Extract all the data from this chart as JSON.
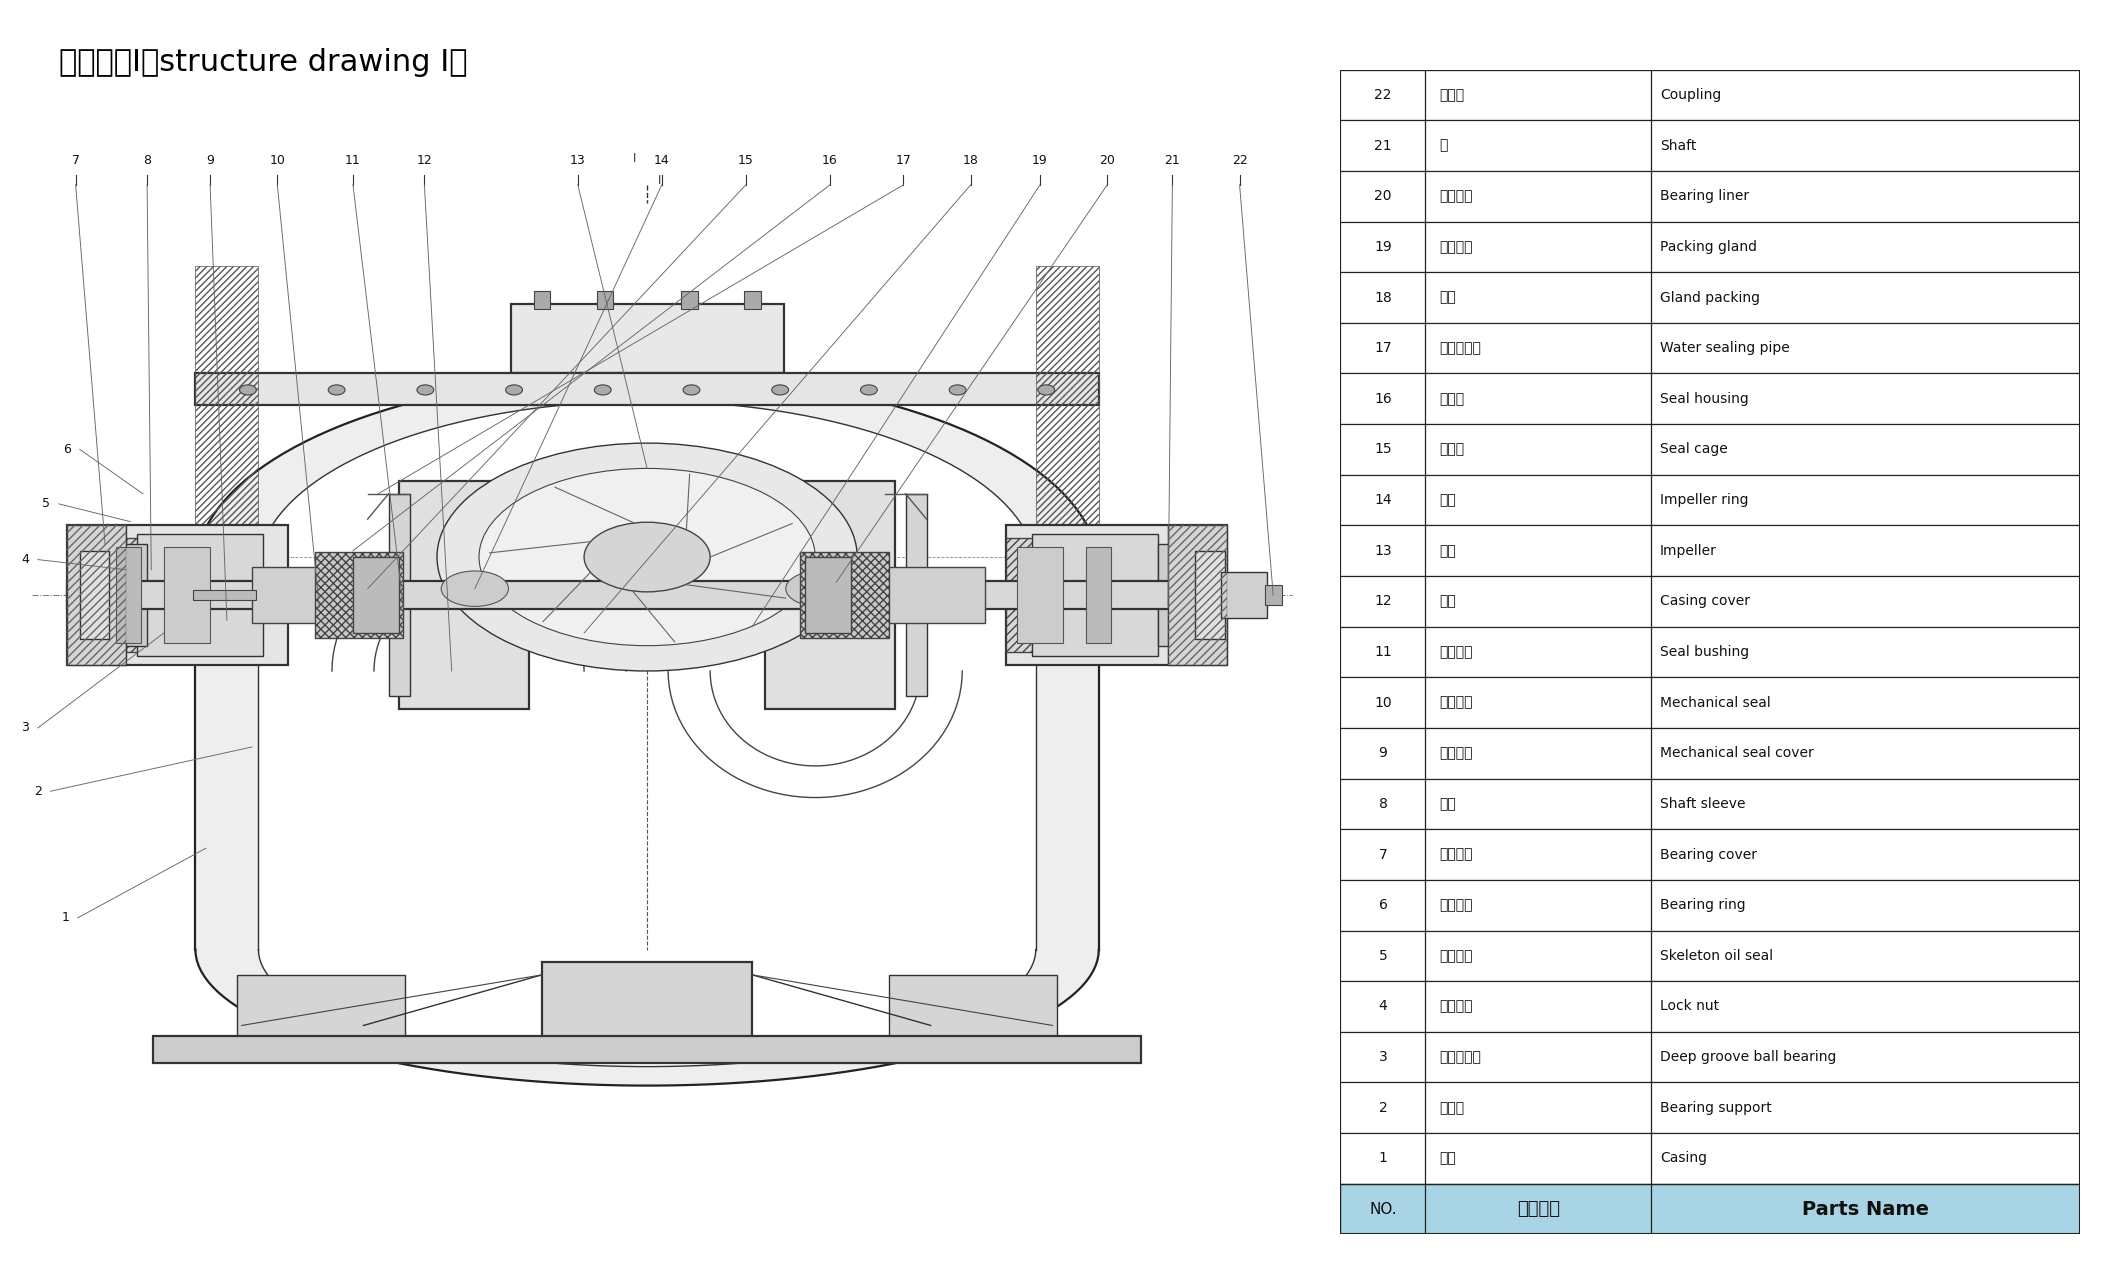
{
  "title": "结构形式I（structure drawing I）",
  "title_fontsize": 22,
  "table_data": [
    [
      "22",
      "联轴器",
      "Coupling"
    ],
    [
      "21",
      "轴",
      "Shaft"
    ],
    [
      "20",
      "轴承衬圈",
      "Bearing liner"
    ],
    [
      "19",
      "填料压盖",
      "Packing gland"
    ],
    [
      "18",
      "填料",
      "Gland packing"
    ],
    [
      "17",
      "水封管部件",
      "Water sealing pipe"
    ],
    [
      "16",
      "密封体",
      "Seal housing"
    ],
    [
      "15",
      "填料环",
      "Seal cage"
    ],
    [
      "14",
      "口环",
      "Impeller ring"
    ],
    [
      "13",
      "叶轮",
      "Impeller"
    ],
    [
      "12",
      "泵盖",
      "Casing cover"
    ],
    [
      "11",
      "密封衬套",
      "Seal bushing"
    ],
    [
      "10",
      "机械密封",
      "Mechanical seal"
    ],
    [
      "9",
      "机封压盖",
      "Mechanical seal cover"
    ],
    [
      "8",
      "轴套",
      "Shaft sleeve"
    ],
    [
      "7",
      "轴承压盖",
      "Bearing cover"
    ],
    [
      "6",
      "轴承压环",
      "Bearing ring"
    ],
    [
      "5",
      "骨架油封",
      "Skeleton oil seal"
    ],
    [
      "4",
      "锁紧螺母",
      "Lock nut"
    ],
    [
      "3",
      "深沟球轴承",
      "Deep groove ball bearing"
    ],
    [
      "2",
      "轴承体",
      "Bearing support"
    ],
    [
      "1",
      "泵体",
      "Casing"
    ]
  ],
  "header": [
    "NO.",
    "零件名称",
    "Parts Name"
  ],
  "header_bg": "#a8d4e6",
  "table_bg": "#ffffff",
  "table_border": "#000000",
  "text_color": "#000000",
  "top_numbers": [
    "7",
    "8",
    "9",
    "10",
    "11",
    "12",
    "13",
    "14",
    "15",
    "16",
    "17",
    "18",
    "19",
    "20",
    "21",
    "22"
  ],
  "left_numbers": [
    "6",
    "5",
    "4",
    "3",
    "2",
    "1"
  ]
}
